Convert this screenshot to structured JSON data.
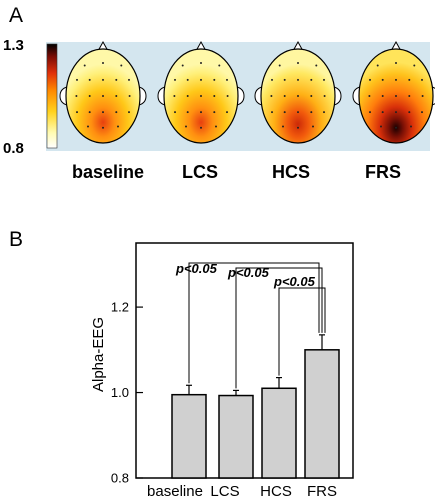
{
  "panel_a": {
    "label": "A",
    "scale_max": "1.3",
    "scale_min": "0.8",
    "conditions": [
      "baseline",
      "LCS",
      "HCS",
      "FRS"
    ],
    "colors": {
      "map_background": "#d4e6ef",
      "low": "#ffff99",
      "high": "#000000"
    }
  },
  "panel_b": {
    "label": "B"
  },
  "chart_data": {
    "type": "bar",
    "categories": [
      "baseline",
      "LCS",
      "HCS",
      "FRS"
    ],
    "values": [
      0.995,
      0.993,
      1.01,
      1.1
    ],
    "errors": [
      0.022,
      0.012,
      0.025,
      0.035
    ],
    "ylabel": "Alpha-EEG",
    "ylim": [
      0.8,
      1.35
    ],
    "yticks": [
      "0.8",
      "1.0",
      "1.2"
    ],
    "yticks_values": [
      0.8,
      1.0,
      1.2
    ],
    "bar_color": "#d0d0d0",
    "significance": [
      {
        "pair": [
          "baseline",
          "FRS"
        ],
        "label": "p<0.05"
      },
      {
        "pair": [
          "LCS",
          "FRS"
        ],
        "label": "p<0.05"
      },
      {
        "pair": [
          "HCS",
          "FRS"
        ],
        "label": "p<0.05"
      }
    ]
  }
}
